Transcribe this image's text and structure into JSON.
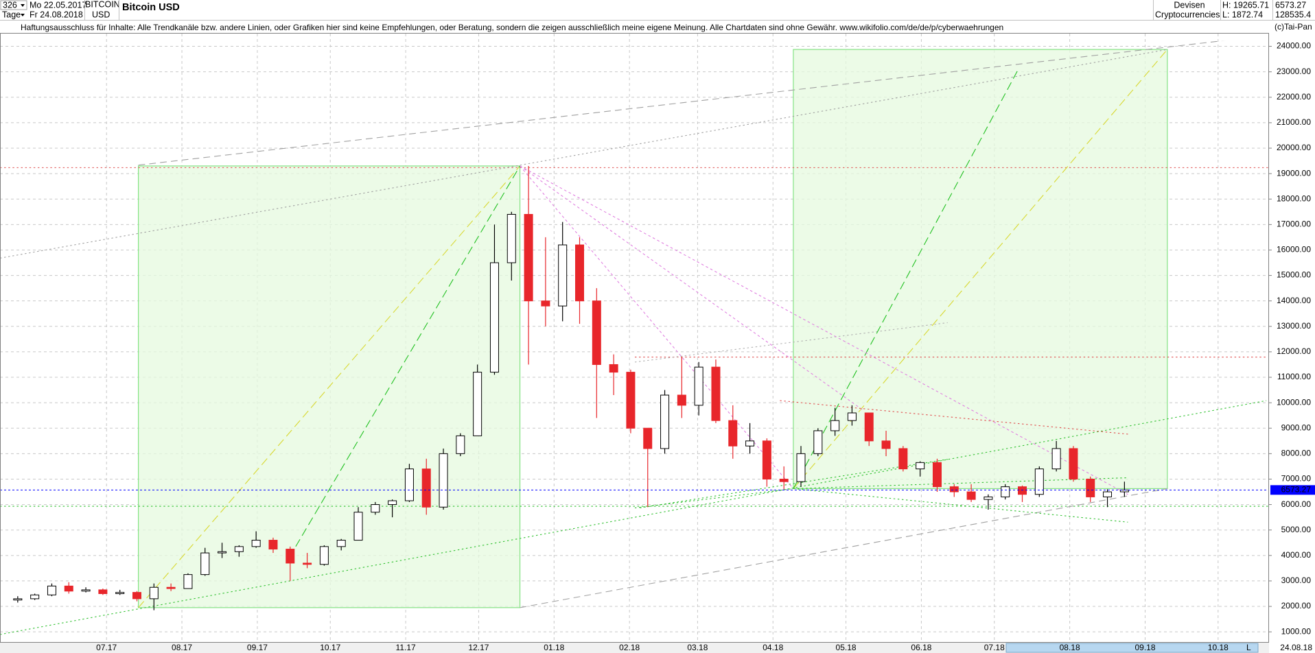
{
  "header": {
    "count": "326",
    "period": "Tage",
    "start": "Mo 22.05.2017",
    "end": "Fr 24.08.2018",
    "symbol": "BITCOIN",
    "currency": "USD",
    "name": "Bitcoin USD",
    "group": "Devisen",
    "subgroup": "Cryptocurrencies",
    "high": "H: 19265.71",
    "low": "L: 1872.74",
    "last": "6573.27",
    "volume": "128535.4",
    "disclaimer": "Haftungsausschluss für Inhalte: Alle Trendkanäle bzw. andere Linien, oder Grafiken hier sind keine Empfehlungen, oder Beratung, sondern die zeigen ausschließlich meine eigene Meinung. Alle Chartdaten sind ohne Gewähr.  www.wikifolio.com/de/de/p/cyberwaehrungen",
    "copyright": "(c)Tai-Pan",
    "scroll_date": "24.08.18",
    "scroll_mode": "L"
  },
  "chart_data": {
    "type": "candlestick",
    "x": [
      "22.05.2017",
      "29.05.2017",
      "05.06.2017",
      "12.06.2017",
      "19.06.2017",
      "26.06.2017",
      "03.07.2017",
      "10.07.2017",
      "17.07.2017",
      "24.07.2017",
      "31.07.2017",
      "07.08.2017",
      "14.08.2017",
      "21.08.2017",
      "28.08.2017",
      "04.09.2017",
      "11.09.2017",
      "18.09.2017",
      "25.09.2017",
      "02.10.2017",
      "09.10.2017",
      "16.10.2017",
      "23.10.2017",
      "30.10.2017",
      "06.11.2017",
      "13.11.2017",
      "20.11.2017",
      "27.11.2017",
      "04.12.2017",
      "11.12.2017",
      "18.12.2017",
      "25.12.2017",
      "01.01.2018",
      "08.01.2018",
      "15.01.2018",
      "22.01.2018",
      "29.01.2018",
      "05.02.2018",
      "12.02.2018",
      "19.02.2018",
      "26.02.2018",
      "05.03.2018",
      "12.03.2018",
      "19.03.2018",
      "26.03.2018",
      "02.04.2018",
      "09.04.2018",
      "16.04.2018",
      "23.04.2018",
      "30.04.2018",
      "07.05.2018",
      "14.05.2018",
      "21.05.2018",
      "28.05.2018",
      "04.06.2018",
      "11.06.2018",
      "18.06.2018",
      "25.06.2018",
      "02.07.2018",
      "09.07.2018",
      "16.07.2018",
      "23.07.2018",
      "30.07.2018",
      "06.08.2018",
      "13.08.2018",
      "20.08.2018"
    ],
    "open": [
      2250,
      2300,
      2450,
      2800,
      2600,
      2650,
      2500,
      2550,
      2300,
      2750,
      2700,
      3250,
      4100,
      4150,
      4350,
      4600,
      4250,
      3700,
      3650,
      4350,
      4600,
      5700,
      6000,
      6150,
      7400,
      5900,
      8000,
      8700,
      11200,
      15500,
      17400,
      14000,
      13800,
      16200,
      14000,
      11500,
      11200,
      9000,
      8200,
      10300,
      9900,
      11400,
      9300,
      8300,
      8500,
      7000,
      6900,
      8000,
      8900,
      9300,
      9600,
      8500,
      8200,
      7400,
      7650,
      6700,
      6500,
      6200,
      6300,
      6700,
      6400,
      7400,
      8200,
      7000,
      6300,
      6500
    ],
    "high": [
      2400,
      2500,
      2900,
      2950,
      2750,
      2700,
      2650,
      2600,
      2900,
      2900,
      3300,
      4300,
      4500,
      4400,
      4950,
      4700,
      4350,
      4100,
      4400,
      4650,
      5900,
      6100,
      6200,
      7600,
      7800,
      8200,
      8800,
      11500,
      17000,
      17500,
      19300,
      16500,
      17100,
      16500,
      14500,
      11900,
      11300,
      9000,
      10500,
      11800,
      11600,
      11700,
      9900,
      9200,
      8600,
      7500,
      8300,
      9000,
      9800,
      9900,
      9600,
      8900,
      8300,
      7700,
      7800,
      6800,
      6800,
      6400,
      6800,
      6750,
      7500,
      8500,
      8300,
      7100,
      6600,
      6900
    ],
    "low": [
      2150,
      2250,
      2400,
      2500,
      2550,
      2450,
      2450,
      2200,
      1850,
      2600,
      2700,
      3200,
      3900,
      3950,
      4300,
      4100,
      3000,
      3500,
      3600,
      4200,
      4600,
      5600,
      5500,
      6100,
      5600,
      5800,
      7900,
      8700,
      11100,
      14800,
      11500,
      13000,
      13200,
      13100,
      9400,
      10300,
      8800,
      5900,
      8000,
      9400,
      9500,
      9200,
      7800,
      8000,
      6700,
      6600,
      6700,
      7900,
      8700,
      9100,
      8300,
      7900,
      7300,
      7100,
      6500,
      6300,
      6100,
      5800,
      6200,
      6100,
      6300,
      7300,
      6900,
      6100,
      5900,
      6300
    ],
    "close": [
      2300,
      2450,
      2800,
      2600,
      2650,
      2500,
      2550,
      2300,
      2750,
      2700,
      3250,
      4100,
      4150,
      4350,
      4600,
      4250,
      3700,
      3650,
      4350,
      4600,
      5700,
      6000,
      6150,
      7400,
      5900,
      8000,
      8700,
      11200,
      15500,
      17400,
      14000,
      13800,
      16200,
      14000,
      11500,
      11200,
      9000,
      8200,
      10300,
      9900,
      11400,
      9300,
      8300,
      8500,
      7000,
      6900,
      8000,
      8900,
      9300,
      9600,
      8500,
      8200,
      7400,
      7650,
      6700,
      6500,
      6200,
      6300,
      6700,
      6400,
      7400,
      8200,
      7000,
      6300,
      6500,
      6573.27
    ],
    "up_color": "#ffffff",
    "down_color": "#e8262b",
    "last_price": 6573.27,
    "last_price_color": "#0000ff",
    "ylim": [
      600,
      24500
    ],
    "yticks": [
      {
        "value": 1000,
        "label": "1000.00"
      },
      {
        "value": 2000,
        "label": "2000.00"
      },
      {
        "value": 3000,
        "label": "3000.00"
      },
      {
        "value": 4000,
        "label": "4000.00"
      },
      {
        "value": 5000,
        "label": "5000.00"
      },
      {
        "value": 6000,
        "label": "6000.00"
      },
      {
        "value": 7000,
        "label": "7000.00"
      },
      {
        "value": 8000,
        "label": "8000.00"
      },
      {
        "value": 9000,
        "label": "9000.00"
      },
      {
        "value": 10000,
        "label": "10000.00"
      },
      {
        "value": 11000,
        "label": "11000.00"
      },
      {
        "value": 12000,
        "label": "12000.00"
      },
      {
        "value": 13000,
        "label": "13000.00"
      },
      {
        "value": 14000,
        "label": "14000.00"
      },
      {
        "value": 15000,
        "label": "15000.00"
      },
      {
        "value": 16000,
        "label": "16000.00"
      },
      {
        "value": 17000,
        "label": "17000.00"
      },
      {
        "value": 18000,
        "label": "18000.00"
      },
      {
        "value": 19000,
        "label": "19000.00"
      },
      {
        "value": 20000,
        "label": "20000.00"
      },
      {
        "value": 21000,
        "label": "21000.00"
      },
      {
        "value": 22000,
        "label": "22000.00"
      },
      {
        "value": 23000,
        "label": "23000.00"
      },
      {
        "value": 24000,
        "label": "24000.00"
      }
    ],
    "xticks": [
      {
        "value": "01.07.2017",
        "label": "07.17"
      },
      {
        "value": "01.08.2017",
        "label": "08.17"
      },
      {
        "value": "01.09.2017",
        "label": "09.17"
      },
      {
        "value": "01.10.2017",
        "label": "10.17"
      },
      {
        "value": "01.11.2017",
        "label": "11.17"
      },
      {
        "value": "01.12.2017",
        "label": "12.17"
      },
      {
        "value": "01.01.2018",
        "label": "01.18"
      },
      {
        "value": "01.02.2018",
        "label": "02.18"
      },
      {
        "value": "01.03.2018",
        "label": "03.18"
      },
      {
        "value": "01.04.2018",
        "label": "04.18"
      },
      {
        "value": "01.05.2018",
        "label": "05.18"
      },
      {
        "value": "01.06.2018",
        "label": "06.18"
      },
      {
        "value": "01.07.2018",
        "label": "07.18"
      },
      {
        "value": "01.08.2018",
        "label": "08.18"
      },
      {
        "value": "01.09.2018",
        "label": "09.18"
      },
      {
        "value": "01.10.2018",
        "label": "10.18"
      }
    ],
    "grid": true
  }
}
